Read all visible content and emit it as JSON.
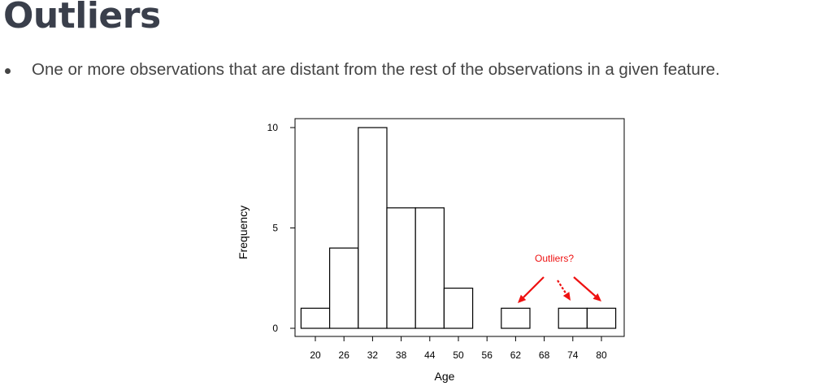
{
  "page": {
    "title": "Outliers",
    "bullets": [
      "One or more observations that are distant from the rest of the observations in a given feature."
    ]
  },
  "chart_data": {
    "type": "bar",
    "title": "",
    "xlabel": "Age",
    "ylabel": "Frequency",
    "x_ticks": [
      20,
      26,
      32,
      38,
      44,
      50,
      56,
      62,
      68,
      74,
      80
    ],
    "y_ticks": [
      0,
      5,
      10
    ],
    "xlim": [
      16,
      83
    ],
    "ylim": [
      0,
      10
    ],
    "bins": [
      {
        "x": 20,
        "value": 1
      },
      {
        "x": 26,
        "value": 4
      },
      {
        "x": 32,
        "value": 10
      },
      {
        "x": 38,
        "value": 6
      },
      {
        "x": 44,
        "value": 6
      },
      {
        "x": 50,
        "value": 2
      },
      {
        "x": 56,
        "value": 0
      },
      {
        "x": 62,
        "value": 1
      },
      {
        "x": 68,
        "value": 0
      },
      {
        "x": 74,
        "value": 1
      },
      {
        "x": 80,
        "value": 1
      }
    ],
    "bin_width": 6,
    "grid": false,
    "annotation": {
      "text": "Outliers?",
      "color": "#ee1111",
      "targets": [
        62,
        74,
        80
      ]
    }
  }
}
